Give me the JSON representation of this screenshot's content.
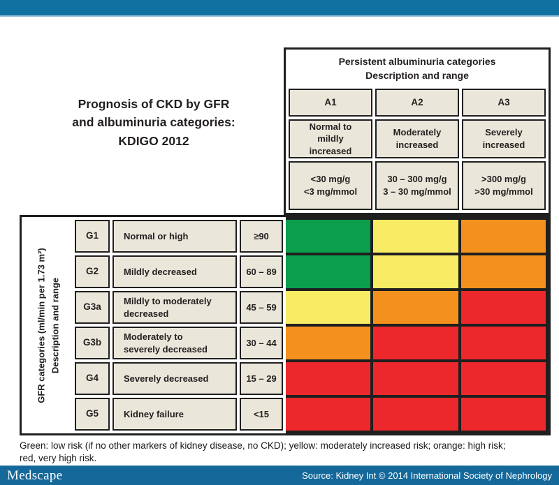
{
  "colors": {
    "top_bar": "#1171a1",
    "footer_bar": "#14699a",
    "cell_bg": "#eae7da"
  },
  "risk_colors": {
    "green": "#0a9e4d",
    "yellow": "#f7ec63",
    "orange": "#f4911e",
    "red": "#ed282d"
  },
  "title": {
    "text": "Prognosis of CKD by GFR\nand albuminuria categories:\nKDIGO 2012"
  },
  "albuminuria": {
    "header_text": "Persistent albuminuria categories\nDescription and range",
    "columns": [
      {
        "code": "A1",
        "description": "Normal to\nmildly\nincreased",
        "range": "<30 mg/g\n<3 mg/mmol"
      },
      {
        "code": "A2",
        "description": "Moderately\nincreased",
        "range": "30 – 300 mg/g\n3 – 30 mg/mmol"
      },
      {
        "code": "A3",
        "description": "Severely\nincreased",
        "range": ">300 mg/g\n>30 mg/mmol"
      }
    ]
  },
  "gfr_axis": {
    "label": "GFR categories (ml/min per 1.73 m²)\nDescription and range"
  },
  "gfr_rows": [
    {
      "code": "G1",
      "description": "Normal or high",
      "range": "≥90",
      "risk": [
        "green",
        "yellow",
        "orange"
      ]
    },
    {
      "code": "G2",
      "description": "Mildly decreased",
      "range": "60 – 89",
      "risk": [
        "green",
        "yellow",
        "orange"
      ]
    },
    {
      "code": "G3a",
      "description": "Mildly to moderately\ndecreased",
      "range": "45 – 59",
      "risk": [
        "yellow",
        "orange",
        "red"
      ]
    },
    {
      "code": "G3b",
      "description": "Moderately to\nseverely decreased",
      "range": "30 – 44",
      "risk": [
        "orange",
        "red",
        "red"
      ]
    },
    {
      "code": "G4",
      "description": "Severely decreased",
      "range": "15 – 29",
      "risk": [
        "red",
        "red",
        "red"
      ]
    },
    {
      "code": "G5",
      "description": "Kidney failure",
      "range": "<15",
      "risk": [
        "red",
        "red",
        "red"
      ]
    }
  ],
  "caption": {
    "text": "Green: low risk (if no other markers of kidney disease, no CKD); yellow: moderately increased risk; orange: high risk;\nred, very high risk."
  },
  "footer": {
    "logo": "Medscape",
    "source": "Source: Kidney Int © 2014 International Society of Nephrology"
  },
  "chart_data": {
    "type": "heatmap",
    "title": "Prognosis of CKD by GFR and albuminuria categories: KDIGO 2012",
    "x_categories": [
      "A1",
      "A2",
      "A3"
    ],
    "x_descriptions": [
      "Normal to mildly increased",
      "Moderately increased",
      "Severely increased"
    ],
    "x_ranges": [
      "<30 mg/g, <3 mg/mmol",
      "30–300 mg/g, 3–30 mg/mmol",
      ">300 mg/g, >30 mg/mmol"
    ],
    "y_categories": [
      "G1",
      "G2",
      "G3a",
      "G3b",
      "G4",
      "G5"
    ],
    "y_descriptions": [
      "Normal or high",
      "Mildly decreased",
      "Mildly to moderately decreased",
      "Moderately to severely decreased",
      "Severely decreased",
      "Kidney failure"
    ],
    "y_ranges": [
      "≥90",
      "60–89",
      "45–59",
      "30–44",
      "15–29",
      "<15"
    ],
    "values": [
      [
        "green",
        "yellow",
        "orange"
      ],
      [
        "green",
        "yellow",
        "orange"
      ],
      [
        "yellow",
        "orange",
        "red"
      ],
      [
        "orange",
        "red",
        "red"
      ],
      [
        "red",
        "red",
        "red"
      ],
      [
        "red",
        "red",
        "red"
      ]
    ],
    "legend": {
      "green": "low risk (if no other markers of kidney disease, no CKD)",
      "yellow": "moderately increased risk",
      "orange": "high risk",
      "red": "very high risk"
    },
    "xlabel": "Persistent albuminuria categories — Description and range",
    "ylabel": "GFR categories (ml/min per 1.73 m²) — Description and range"
  }
}
